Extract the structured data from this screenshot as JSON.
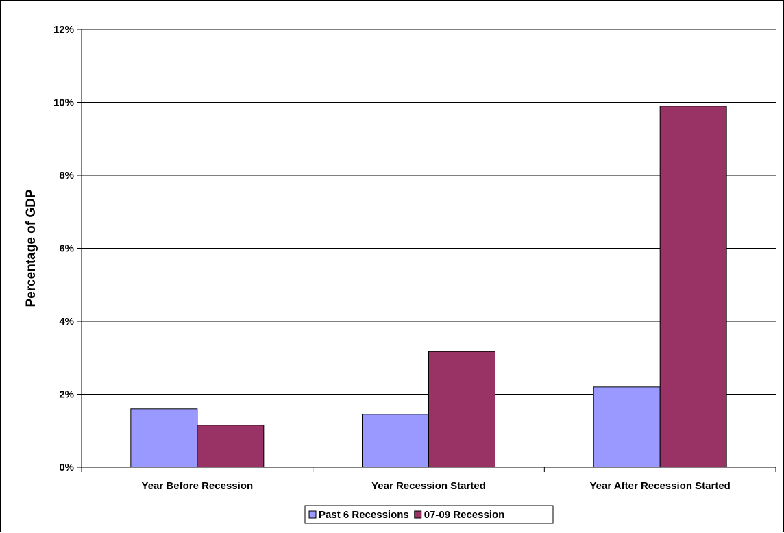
{
  "chart_data": {
    "type": "bar",
    "title": "",
    "xlabel": "",
    "ylabel": "Percentage of GDP",
    "ylim": [
      0,
      12
    ],
    "y_ticks": [
      0,
      2,
      4,
      6,
      8,
      10,
      12
    ],
    "y_tick_labels": [
      "0%",
      "2%",
      "4%",
      "6%",
      "8%",
      "10%",
      "12%"
    ],
    "grid": true,
    "legend_position": "bottom",
    "categories": [
      "Year Before Recession",
      "Year Recession Started",
      "Year After Recession Started"
    ],
    "series": [
      {
        "name": "Past 6 Recessions",
        "values": [
          1.6,
          1.45,
          2.2
        ],
        "color": "#9999FF"
      },
      {
        "name": "07-09 Recession",
        "values": [
          1.15,
          3.17,
          9.9
        ],
        "color": "#993366"
      }
    ]
  }
}
